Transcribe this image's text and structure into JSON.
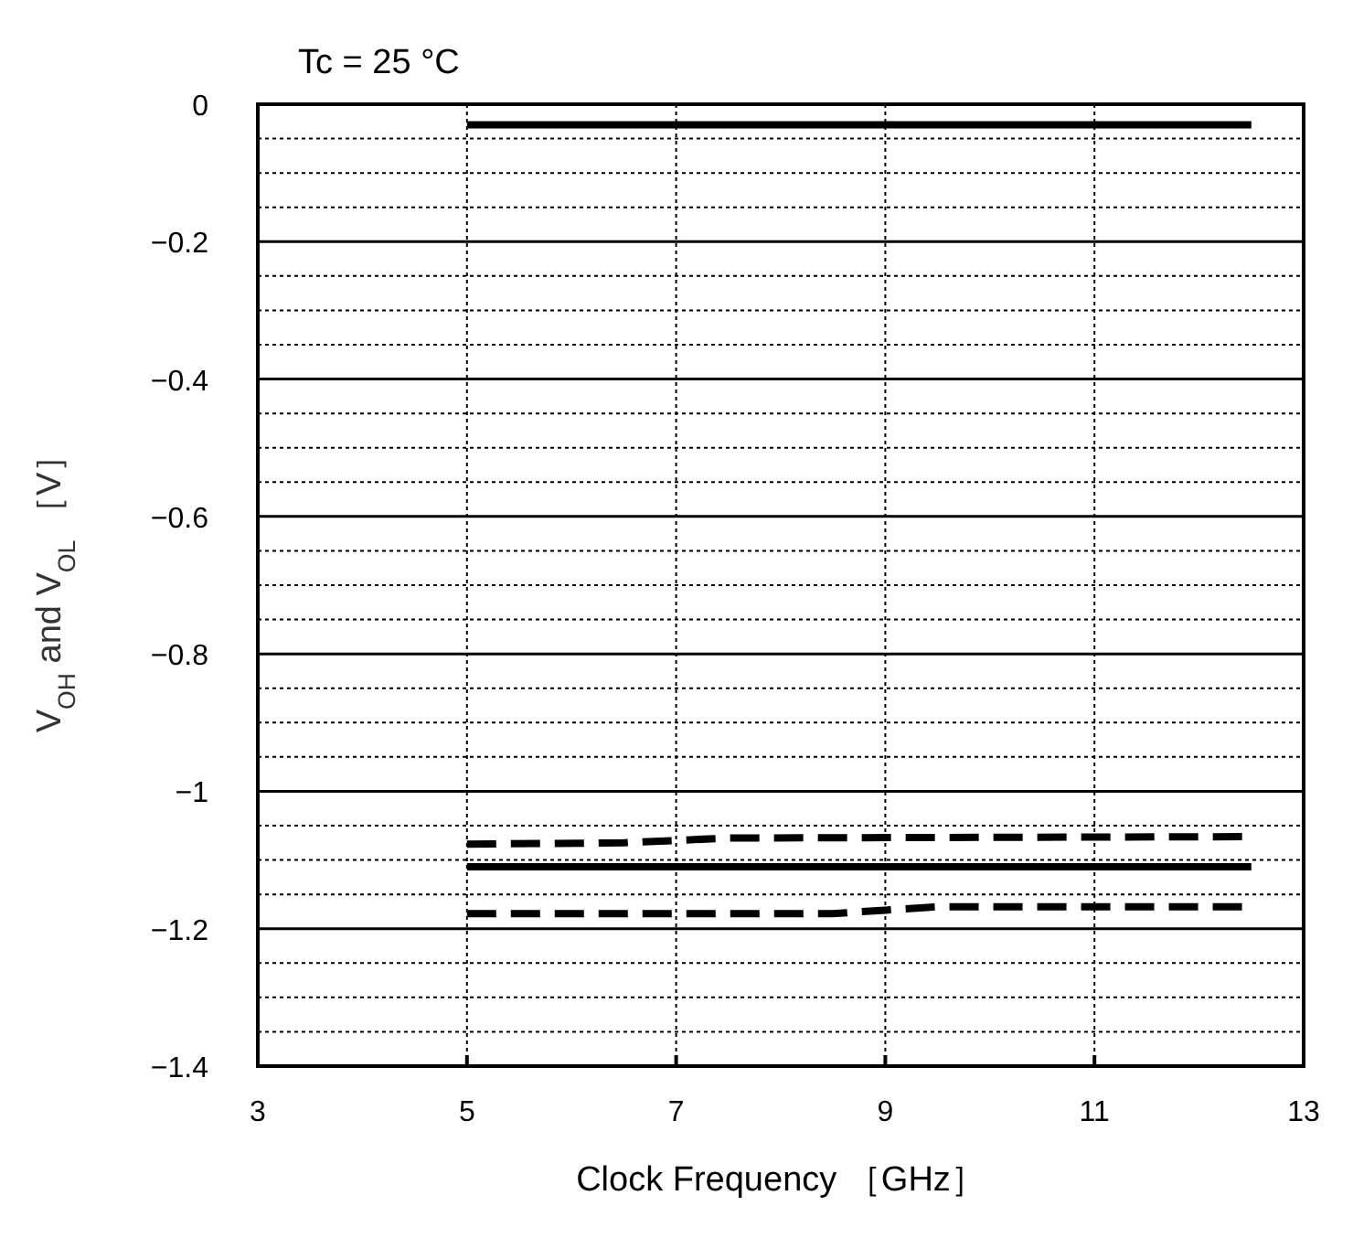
{
  "chart_data": {
    "type": "line",
    "title": "Tc = 25 °C",
    "xlabel": "Clock Frequency ［GHz］",
    "ylabel": "V$_{OH}$ and V$_{OL}$ ［V］",
    "xlim": [
      3,
      13
    ],
    "xticks": [
      3,
      5,
      7,
      9,
      11,
      13
    ],
    "ylim": [
      -1.4,
      0
    ],
    "yticks": [
      0,
      {
        "value": -0.05,
        "label": null
      },
      {
        "value": -0.1,
        "label": null
      },
      {
        "value": -0.15,
        "label": null
      },
      -0.2,
      {
        "value": -0.25,
        "label": null
      },
      {
        "value": -0.3,
        "label": null
      },
      {
        "value": -0.35,
        "label": null
      },
      -0.4,
      {
        "value": -0.45,
        "label": null
      },
      {
        "value": -0.5,
        "label": null
      },
      {
        "value": -0.55,
        "label": null
      },
      -0.6,
      {
        "value": -0.65,
        "label": null
      },
      {
        "value": -0.7,
        "label": null
      },
      {
        "value": -0.75,
        "label": null
      },
      -0.8,
      {
        "value": -0.85,
        "label": null
      },
      {
        "value": -0.9,
        "label": null
      },
      {
        "value": -0.95,
        "label": null
      },
      -1,
      {
        "value": -1.05,
        "label": null
      },
      {
        "value": -1.1,
        "label": null
      },
      {
        "value": -1.15,
        "label": null
      },
      -1.2,
      {
        "value": -1.25,
        "label": null
      },
      {
        "value": -1.3,
        "label": null
      },
      {
        "value": -1.35,
        "label": null
      },
      -1.4
    ],
    "grid": true,
    "marker": "none",
    "series": [
      {
        "color": "#000000",
        "line_style": "solid",
        "x": [
          5,
          12.5
        ],
        "values": [
          -0.03,
          -0.03
        ]
      },
      {
        "color": "#000000",
        "line_style": "solid",
        "x": [
          5,
          12.5
        ],
        "values": [
          -1.11,
          -1.11
        ]
      },
      {
        "color": "#000000",
        "line_style": "dashed",
        "x": [
          5,
          6.5,
          7.5,
          12.5
        ],
        "values": [
          -1.077,
          -1.075,
          -1.068,
          -1.066
        ]
      },
      {
        "color": "#000000",
        "line_style": "dashed",
        "x": [
          5,
          8.5,
          9,
          9.5,
          12.5
        ],
        "values": [
          -1.178,
          -1.178,
          -1.173,
          -1.168,
          -1.168
        ]
      }
    ]
  }
}
